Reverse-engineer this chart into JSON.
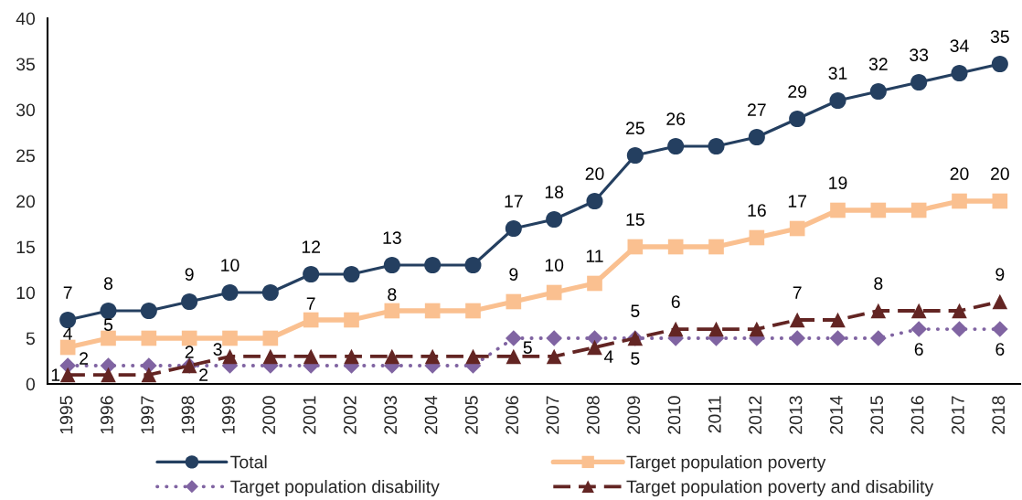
{
  "chart_data": {
    "type": "line",
    "categories": [
      "1995",
      "1996",
      "1997",
      "1998",
      "1999",
      "2000",
      "2001",
      "2002",
      "2003",
      "2004",
      "2005",
      "2006",
      "2007",
      "2008",
      "2009",
      "2010",
      "2011",
      "2012",
      "2013",
      "2014",
      "2015",
      "2016",
      "2017",
      "2018"
    ],
    "series": [
      {
        "name": "Total",
        "color": "#243f60",
        "marker": "circle",
        "line_style": "solid",
        "values": [
          7,
          8,
          8,
          9,
          10,
          10,
          12,
          12,
          13,
          13,
          13,
          17,
          18,
          20,
          25,
          26,
          26,
          27,
          29,
          31,
          32,
          33,
          34,
          35
        ],
        "value_labels": [
          "7",
          "8",
          null,
          "9",
          "10",
          null,
          "12",
          null,
          "13",
          null,
          null,
          "17",
          "18",
          "20",
          "25",
          "26",
          null,
          "27",
          "29",
          "31",
          "32",
          "33",
          "34",
          "35"
        ]
      },
      {
        "name": "Target population poverty",
        "color": "#fac090",
        "marker": "square",
        "line_style": "solid",
        "values": [
          4,
          5,
          5,
          5,
          5,
          5,
          7,
          7,
          8,
          8,
          8,
          9,
          10,
          11,
          15,
          15,
          15,
          16,
          17,
          19,
          19,
          19,
          20,
          20
        ],
        "value_labels": [
          "4",
          "5",
          null,
          null,
          null,
          null,
          "7",
          null,
          "8",
          null,
          null,
          "9",
          "10",
          "11",
          "15",
          null,
          null,
          "16",
          "17",
          "19",
          null,
          null,
          "20",
          "20"
        ]
      },
      {
        "name": "Target population disability",
        "color": "#8064a2",
        "marker": "diamond",
        "line_style": "dotted",
        "values": [
          2,
          2,
          2,
          2,
          2,
          2,
          2,
          2,
          2,
          2,
          2,
          5,
          5,
          5,
          5,
          5,
          5,
          5,
          5,
          5,
          5,
          6,
          6,
          6
        ],
        "value_labels": [
          "2",
          null,
          null,
          "2",
          null,
          null,
          null,
          null,
          null,
          null,
          null,
          "5",
          null,
          null,
          "5",
          null,
          null,
          null,
          null,
          null,
          null,
          "6",
          null,
          "6"
        ]
      },
      {
        "name": "Target population poverty and disability",
        "color": "#632523",
        "marker": "triangle",
        "line_style": "dashed",
        "values": [
          1,
          1,
          1,
          2,
          3,
          3,
          3,
          3,
          3,
          3,
          3,
          3,
          3,
          4,
          5,
          6,
          6,
          6,
          7,
          7,
          8,
          8,
          8,
          9
        ],
        "value_labels": [
          "1",
          null,
          null,
          "2",
          "3",
          null,
          null,
          null,
          null,
          null,
          null,
          null,
          null,
          "4",
          "5",
          "6",
          null,
          null,
          "7",
          null,
          "8",
          null,
          null,
          "9"
        ]
      }
    ],
    "ylim": [
      0,
      40
    ],
    "yticks": [
      0,
      5,
      10,
      15,
      20,
      25,
      30,
      35,
      40
    ],
    "legend": "bottom"
  }
}
